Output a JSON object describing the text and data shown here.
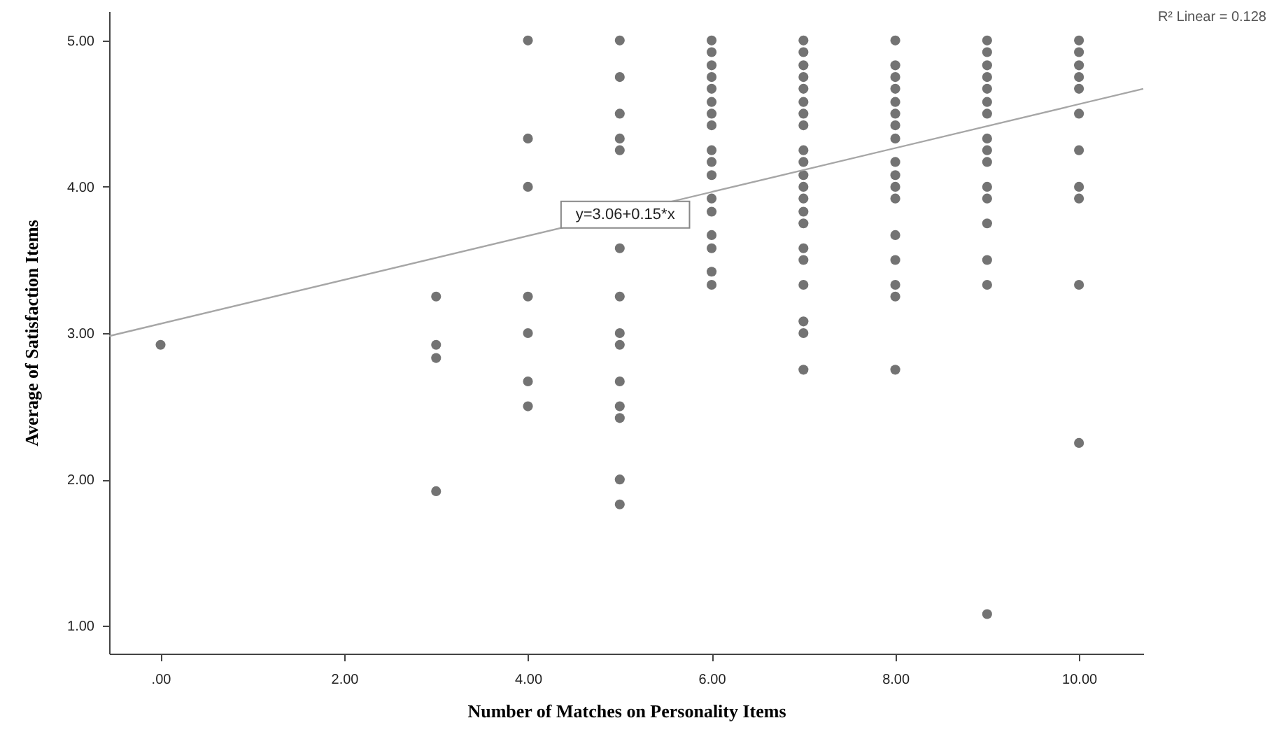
{
  "chart_data": {
    "type": "scatter",
    "xlabel": "Number of Matches on Personality Items",
    "ylabel": "Average of Satisfaction Items",
    "xlim": [
      -0.56,
      10.7
    ],
    "ylim": [
      0.81,
      5.2
    ],
    "xticks": [
      {
        "value": 0,
        "label": ".00"
      },
      {
        "value": 2,
        "label": "2.00"
      },
      {
        "value": 4,
        "label": "4.00"
      },
      {
        "value": 6,
        "label": "6.00"
      },
      {
        "value": 8,
        "label": "8.00"
      },
      {
        "value": 10,
        "label": "10.00"
      }
    ],
    "yticks": [
      {
        "value": 1,
        "label": "1.00"
      },
      {
        "value": 2,
        "label": "2.00"
      },
      {
        "value": 3,
        "label": "3.00"
      },
      {
        "value": 4,
        "label": "4.00"
      },
      {
        "value": 5,
        "label": "5.00"
      }
    ],
    "grid": false,
    "marker": "circle",
    "series": [
      {
        "color": "#737373",
        "x": [
          0,
          3,
          3,
          3,
          3,
          4,
          4,
          4,
          4,
          4,
          4,
          4,
          5,
          5,
          5,
          5,
          5,
          5,
          5,
          5,
          5,
          5,
          5,
          5,
          5,
          5,
          6,
          6,
          6,
          6,
          6,
          6,
          6,
          6,
          6,
          6,
          6,
          6,
          6,
          6,
          6,
          6,
          6,
          7,
          7,
          7,
          7,
          7,
          7,
          7,
          7,
          7,
          7,
          7,
          7,
          7,
          7,
          7,
          7,
          7,
          7,
          7,
          7,
          7,
          8,
          8,
          8,
          8,
          8,
          8,
          8,
          8,
          8,
          8,
          8,
          8,
          8,
          8,
          8,
          8,
          8,
          9,
          9,
          9,
          9,
          9,
          9,
          9,
          9,
          9,
          9,
          9,
          9,
          9,
          9,
          9,
          9,
          10,
          10,
          10,
          10,
          10,
          10,
          10,
          10,
          10,
          10,
          10
        ],
        "values": [
          2.92,
          3.25,
          2.92,
          2.83,
          1.92,
          5.0,
          4.33,
          4.0,
          3.25,
          3.0,
          2.67,
          2.5,
          5.0,
          4.75,
          4.5,
          4.33,
          4.25,
          3.58,
          3.25,
          3.0,
          2.92,
          2.67,
          2.5,
          2.42,
          2.0,
          1.83,
          5.0,
          4.92,
          4.83,
          4.75,
          4.67,
          4.58,
          4.5,
          4.42,
          4.25,
          4.17,
          4.08,
          3.92,
          3.83,
          3.67,
          3.58,
          3.42,
          3.33,
          5.0,
          4.92,
          4.83,
          4.75,
          4.67,
          4.58,
          4.5,
          4.42,
          4.25,
          4.17,
          4.08,
          4.0,
          3.92,
          3.83,
          3.75,
          3.58,
          3.5,
          3.33,
          3.08,
          3.0,
          2.75,
          5.0,
          4.83,
          4.75,
          4.67,
          4.58,
          4.5,
          4.42,
          4.33,
          4.17,
          4.08,
          4.0,
          3.92,
          3.67,
          3.5,
          3.33,
          3.25,
          2.75,
          5.0,
          4.92,
          4.83,
          4.75,
          4.67,
          4.58,
          4.5,
          4.33,
          4.25,
          4.17,
          4.0,
          3.92,
          3.75,
          3.5,
          3.33,
          1.08,
          5.0,
          4.92,
          4.83,
          4.75,
          4.67,
          4.5,
          4.25,
          4.0,
          3.92,
          3.33,
          2.25
        ]
      },
      {
        "type": "line",
        "marker": "none",
        "color": "#a6a6a6",
        "x": [
          -0.56,
          10.7
        ],
        "values": [
          2.98,
          4.67
        ]
      }
    ],
    "annotations": [
      {
        "text": "y=3.06+0.15*x",
        "x": 5.06,
        "y": 3.81
      },
      "R² Linear = 0.128"
    ]
  }
}
